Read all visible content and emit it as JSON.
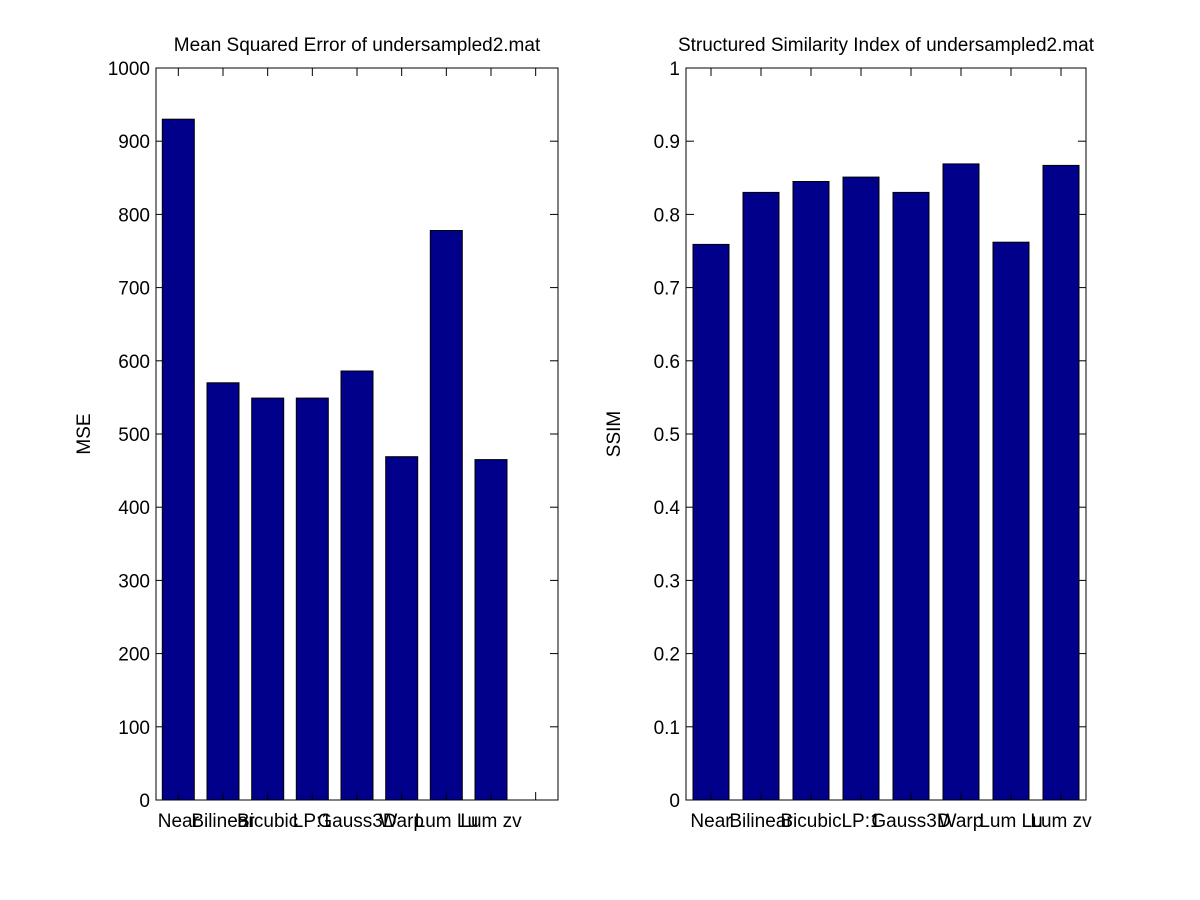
{
  "colors": {
    "bar": "#00008B",
    "axis": "#000000",
    "background": "#FFFFFF"
  },
  "chart_data": [
    {
      "type": "bar",
      "title": "Mean Squared Error of undersampled2.mat",
      "xlabel": "",
      "ylabel": "MSE",
      "categories": [
        "Near",
        "Bilinear",
        "Bicubic",
        "LP:1",
        "Gauss3D",
        "Warp",
        "Lum Lu",
        "Lum zv"
      ],
      "values": [
        930,
        570,
        549,
        549,
        586,
        469,
        778,
        465
      ],
      "ylim": [
        0,
        1000
      ],
      "yticks": [
        0,
        100,
        200,
        300,
        400,
        500,
        600,
        700,
        800,
        900,
        1000
      ],
      "xlim": [
        0.5,
        9.5
      ],
      "grid": false,
      "legend": "none"
    },
    {
      "type": "bar",
      "title": "Structured Similarity Index of undersampled2.mat",
      "xlabel": "",
      "ylabel": "SSIM",
      "categories": [
        "Near",
        "Bilinear",
        "Bicubic",
        "LP:1",
        "Gauss3D",
        "Warp",
        "Lum Lu",
        "Lum zv"
      ],
      "values": [
        0.759,
        0.83,
        0.845,
        0.851,
        0.83,
        0.869,
        0.762,
        0.867
      ],
      "ylim": [
        0,
        1
      ],
      "yticks": [
        0,
        0.1,
        0.2,
        0.3,
        0.4,
        0.5,
        0.6,
        0.7,
        0.8,
        0.9,
        1
      ],
      "xlim": [
        0.5,
        8.5
      ],
      "grid": false,
      "legend": "none"
    }
  ]
}
